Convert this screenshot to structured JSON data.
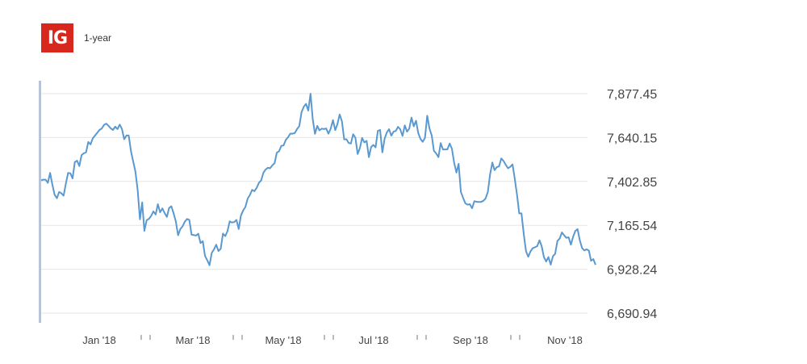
{
  "header": {
    "logo_text": "IG",
    "range_label": "1-year"
  },
  "colors": {
    "line": "#5a99d0",
    "grid": "#e6e6e6",
    "axis": "#b9c3d6",
    "text": "#444444",
    "logo_bg": "#d8271c"
  },
  "chart_data": {
    "type": "line",
    "title": "",
    "xlabel": "",
    "ylabel": "",
    "x_ticks": [
      "Jan '18",
      "Mar '18",
      "May '18",
      "Jul '18",
      "Sep '18",
      "Nov '18"
    ],
    "y_ticks": [
      "7,877.45",
      "7,640.15",
      "7,402.85",
      "7,165.54",
      "6,928.24",
      "6,690.94"
    ],
    "ylim": [
      6690.94,
      7877.45
    ],
    "grid": true,
    "series": [
      {
        "values": [
          7409,
          7413,
          7412,
          7395,
          7449,
          7385,
          7331,
          7312,
          7346,
          7339,
          7326,
          7391,
          7449,
          7447,
          7419,
          7507,
          7515,
          7486,
          7545,
          7555,
          7560,
          7616,
          7603,
          7636,
          7651,
          7666,
          7681,
          7689,
          7708,
          7715,
          7704,
          7690,
          7681,
          7699,
          7686,
          7710,
          7687,
          7631,
          7651,
          7651,
          7566,
          7512,
          7456,
          7356,
          7198,
          7290,
          7136,
          7193,
          7200,
          7217,
          7241,
          7224,
          7280,
          7236,
          7257,
          7232,
          7211,
          7259,
          7269,
          7231,
          7186,
          7112,
          7145,
          7160,
          7185,
          7200,
          7195,
          7115,
          7113,
          7110,
          7120,
          7070,
          7080,
          7001,
          6977,
          6950,
          7017,
          7036,
          7061,
          7027,
          7039,
          7121,
          7107,
          7134,
          7187,
          7181,
          7183,
          7195,
          7146,
          7218,
          7246,
          7265,
          7310,
          7330,
          7357,
          7350,
          7368,
          7395,
          7408,
          7450,
          7467,
          7477,
          7474,
          7490,
          7502,
          7558,
          7566,
          7595,
          7598,
          7628,
          7642,
          7661,
          7661,
          7664,
          7686,
          7702,
          7776,
          7807,
          7822,
          7786,
          7877,
          7741,
          7660,
          7703,
          7679,
          7688,
          7686,
          7689,
          7661,
          7688,
          7734,
          7680,
          7712,
          7765,
          7728,
          7630,
          7631,
          7611,
          7608,
          7658,
          7639,
          7551,
          7584,
          7638,
          7614,
          7622,
          7534,
          7589,
          7600,
          7587,
          7676,
          7681,
          7560,
          7634,
          7667,
          7685,
          7650,
          7672,
          7676,
          7698,
          7684,
          7649,
          7706,
          7672,
          7688,
          7748,
          7701,
          7731,
          7664,
          7632,
          7617,
          7638,
          7758,
          7689,
          7651,
          7568,
          7554,
          7534,
          7610,
          7575,
          7576,
          7576,
          7608,
          7579,
          7503,
          7451,
          7498,
          7346,
          7314,
          7284,
          7277,
          7280,
          7258,
          7296,
          7293,
          7292,
          7292,
          7298,
          7311,
          7346,
          7441,
          7505,
          7464,
          7480,
          7484,
          7527,
          7513,
          7493,
          7474,
          7482,
          7495,
          7417,
          7330,
          7230,
          7230,
          7119,
          7026,
          6996,
          7024,
          7042,
          7047,
          7053,
          7085,
          7053,
          6994,
          6970,
          6994,
          6953,
          6999,
          7011,
          7081,
          7094,
          7127,
          7112,
          7098,
          7101,
          7061,
          7104,
          7136,
          7145,
          7084,
          7043,
          7030,
          7036,
          7029,
          6974,
          6983,
          6952
        ]
      }
    ]
  }
}
